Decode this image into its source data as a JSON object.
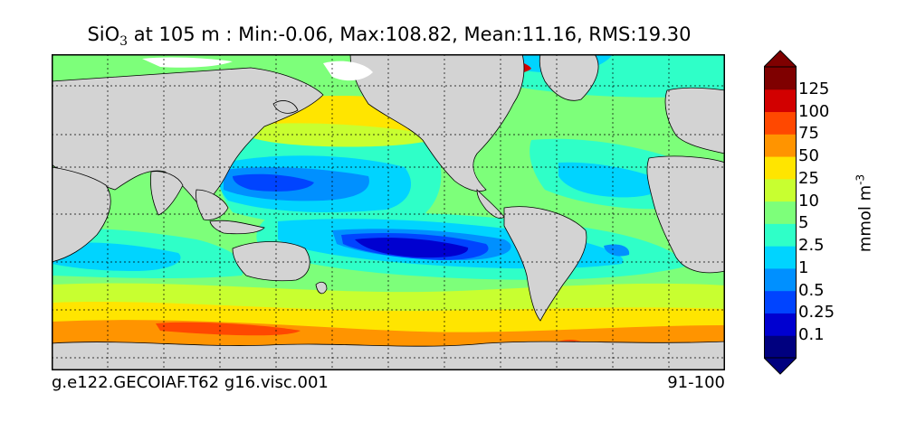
{
  "title": {
    "variable_main": "SiO",
    "variable_sub": "3",
    "rest": " at 105 m : Min:-0.06, Max:108.82, Mean:11.16, RMS:19.30"
  },
  "caption": {
    "case_name": "g.e122.GECOIAF.T62 g16.visc.001",
    "years": "91-100"
  },
  "colorbar": {
    "units_main": "mmol m",
    "units_exp": "-3",
    "ticks": [
      "0.1",
      "0.25",
      "0.5",
      "1",
      "2.5",
      "5",
      "10",
      "25",
      "50",
      "75",
      "100",
      "125"
    ],
    "colors": [
      "#00007f",
      "#0000d0",
      "#0044ff",
      "#0090ff",
      "#00d4ff",
      "#2fffc8",
      "#7dff7a",
      "#c8ff30",
      "#ffe500",
      "#ff9400",
      "#ff4800",
      "#d20000",
      "#7f0000"
    ]
  },
  "map": {
    "land_color": "#d3d3d3",
    "ice_color": "#ffffff"
  }
}
